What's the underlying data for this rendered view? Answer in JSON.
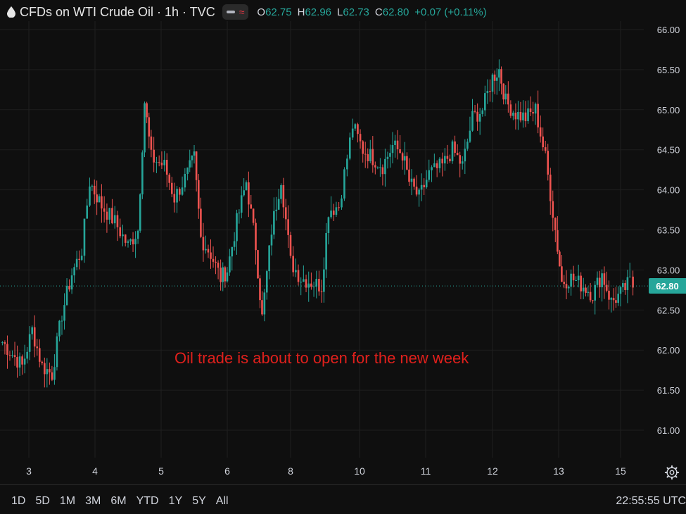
{
  "header": {
    "title": "CFDs on WTI Crude Oil · 1h · TVC",
    "ohlc": {
      "o_label": "O",
      "o_value": "62.75",
      "h_label": "H",
      "h_value": "62.96",
      "l_label": "L",
      "l_value": "62.73",
      "c_label": "C",
      "c_value": "62.80",
      "change": "+0.07 (+0.11%)"
    }
  },
  "annotation": "Oil trade is about to open for the new week",
  "last_price_label": "62.80",
  "ranges": [
    "1D",
    "5D",
    "1M",
    "3M",
    "6M",
    "YTD",
    "1Y",
    "5Y",
    "All"
  ],
  "clock": "22:55:55 UTC",
  "colors": {
    "up": "#26a69a",
    "down": "#ef5350",
    "background": "#0f0f0f",
    "grid": "#1f1f1f"
  },
  "icons": {
    "drop": "oil-drop-icon",
    "settings": "gear-icon"
  },
  "chart_data": {
    "type": "candlestick",
    "x_ticks": [
      "3",
      "4",
      "5",
      "6",
      "8",
      "10",
      "11",
      "12",
      "13",
      "15"
    ],
    "y_ticks": [
      "61.00",
      "61.50",
      "62.00",
      "62.50",
      "63.00",
      "63.50",
      "64.00",
      "64.50",
      "65.00",
      "65.50",
      "66.00"
    ],
    "ylim": [
      60.85,
      66.1
    ],
    "last_price": 62.8,
    "close_path": [
      [
        2.6,
        62.1
      ],
      [
        2.9,
        61.8
      ],
      [
        3.05,
        62.25
      ],
      [
        3.2,
        61.8
      ],
      [
        3.35,
        61.7
      ],
      [
        3.5,
        62.45
      ],
      [
        3.65,
        62.95
      ],
      [
        3.8,
        63.25
      ],
      [
        3.92,
        64.1
      ],
      [
        4.1,
        63.8
      ],
      [
        4.3,
        63.6
      ],
      [
        4.5,
        63.3
      ],
      [
        4.65,
        63.5
      ],
      [
        4.75,
        65.1
      ],
      [
        4.85,
        64.4
      ],
      [
        5.05,
        64.3
      ],
      [
        5.2,
        63.9
      ],
      [
        5.4,
        64.2
      ],
      [
        5.5,
        64.4
      ],
      [
        5.6,
        63.4
      ],
      [
        5.75,
        63.2
      ],
      [
        5.9,
        62.9
      ],
      [
        6.0,
        63.0
      ],
      [
        6.15,
        63.6
      ],
      [
        6.3,
        64.1
      ],
      [
        6.45,
        63.3
      ],
      [
        6.55,
        62.4
      ],
      [
        6.7,
        63.5
      ],
      [
        6.85,
        64.15
      ],
      [
        7.0,
        63.1
      ],
      [
        7.15,
        62.9
      ],
      [
        7.3,
        62.85
      ],
      [
        7.45,
        62.8
      ],
      [
        7.55,
        63.75
      ],
      [
        7.7,
        63.8
      ],
      [
        7.9,
        64.8
      ],
      [
        8.05,
        64.5
      ],
      [
        8.2,
        64.4
      ],
      [
        8.35,
        64.3
      ],
      [
        8.5,
        64.55
      ],
      [
        8.65,
        64.45
      ],
      [
        8.75,
        64.1
      ],
      [
        8.9,
        63.9
      ],
      [
        9.05,
        64.2
      ],
      [
        9.25,
        64.3
      ],
      [
        9.4,
        64.5
      ],
      [
        9.55,
        64.3
      ],
      [
        9.7,
        64.9
      ],
      [
        9.85,
        65.0
      ],
      [
        10.0,
        65.4
      ],
      [
        10.1,
        65.5
      ],
      [
        10.2,
        65.1
      ],
      [
        10.35,
        64.95
      ],
      [
        10.5,
        64.9
      ],
      [
        10.65,
        65.0
      ],
      [
        10.8,
        64.4
      ],
      [
        10.95,
        63.5
      ],
      [
        11.05,
        62.85
      ],
      [
        11.2,
        62.9
      ],
      [
        11.4,
        62.8
      ],
      [
        11.55,
        62.7
      ],
      [
        11.7,
        62.95
      ],
      [
        11.85,
        62.6
      ],
      [
        12.0,
        62.7
      ],
      [
        12.15,
        62.85
      ],
      [
        12.25,
        62.75
      ]
    ]
  }
}
